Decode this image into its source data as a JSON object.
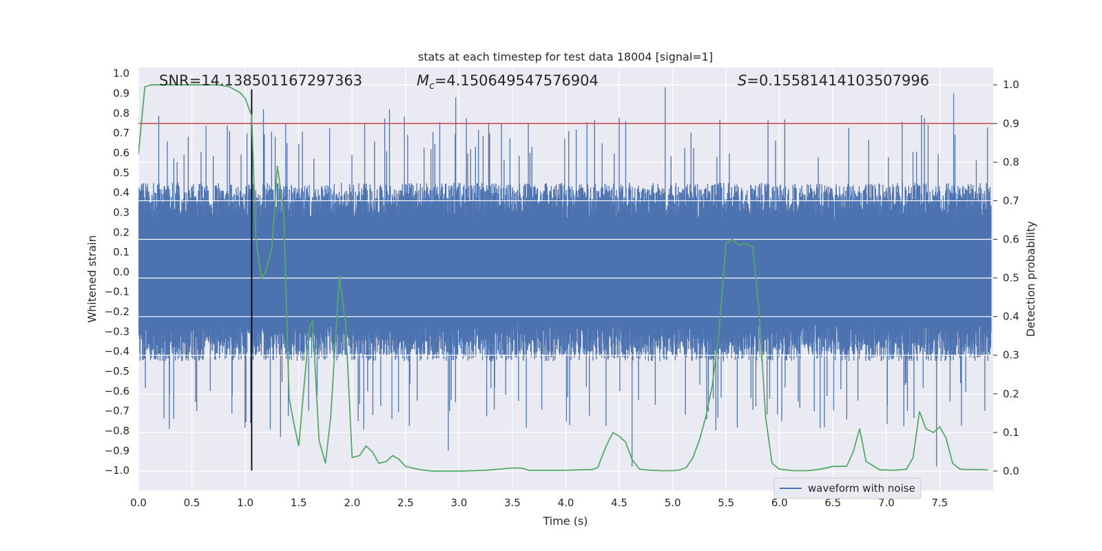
{
  "chart_data": {
    "type": "line",
    "title": "stats at each timestep for test data 18004 [signal=1]",
    "xlabel": "Time (s)",
    "ylabel_left": "Whitened strain",
    "ylabel_right": "Detection probability",
    "xlim": [
      0.0,
      8.0
    ],
    "ylim_left": [
      -1.1,
      1.03
    ],
    "ylim_right": [
      -0.05,
      1.045
    ],
    "x_ticks": [
      "0.0",
      "0.5",
      "1.0",
      "1.5",
      "2.0",
      "2.5",
      "3.0",
      "3.5",
      "4.0",
      "4.5",
      "5.0",
      "5.5",
      "6.0",
      "6.5",
      "7.0",
      "7.5"
    ],
    "y_ticks_left": [
      "1.0",
      "0.9",
      "0.8",
      "0.7",
      "0.6",
      "0.5",
      "0.4",
      "0.3",
      "0.2",
      "0.1",
      "0.0",
      "-0.1",
      "-0.2",
      "-0.3",
      "-0.4",
      "-0.5",
      "-0.6",
      "-0.7",
      "-0.8",
      "-0.9",
      "-1.0"
    ],
    "y_ticks_right": [
      "1.0",
      "0.9",
      "0.8",
      "0.7",
      "0.6",
      "0.5",
      "0.4",
      "0.3",
      "0.2",
      "0.1",
      "0.0"
    ],
    "grid": true,
    "annotations": {
      "snr": "SNR=14.138501167297363",
      "mc_symbol": "M",
      "mc_sub": "c",
      "mc_value": "=4.150649547576904",
      "s_symbol": "S",
      "s_value": "=0.15581414103507996"
    },
    "threshold": {
      "value": 0.9,
      "axis": "right",
      "color": "#c44e52"
    },
    "vline": {
      "x": 1.06,
      "ymin": -1.0,
      "ymax": 0.92,
      "color": "#000000"
    },
    "series": [
      {
        "name": "waveform with noise",
        "axis": "left",
        "color": "#4c72b0",
        "kind": "noise",
        "x_range": [
          0.0,
          7.98
        ],
        "band": [
          -0.42,
          0.42
        ],
        "approx_peaks": [
          {
            "x": 1.17,
            "y": 0.82
          },
          {
            "x": 2.35,
            "y": 0.82
          },
          {
            "x": 2.97,
            "y": 0.88
          },
          {
            "x": 4.93,
            "y": 0.93
          },
          {
            "x": 7.63,
            "y": 0.9
          },
          {
            "x": 1.33,
            "y": -0.83
          },
          {
            "x": 2.9,
            "y": -0.9
          },
          {
            "x": 4.62,
            "y": -0.98
          },
          {
            "x": 7.47,
            "y": -0.98
          },
          {
            "x": 0.33,
            "y": -0.74
          }
        ]
      },
      {
        "name": "detection probability",
        "axis": "right",
        "color": "#55a868",
        "x": [
          0.0,
          0.06,
          0.12,
          0.25,
          0.5,
          0.75,
          0.85,
          0.95,
          1.0,
          1.06,
          1.1,
          1.15,
          1.19,
          1.25,
          1.3,
          1.36,
          1.41,
          1.45,
          1.5,
          1.56,
          1.6,
          1.63,
          1.69,
          1.75,
          1.8,
          1.88,
          1.94,
          2.0,
          2.07,
          2.13,
          2.19,
          2.25,
          2.32,
          2.38,
          2.44,
          2.5,
          2.63,
          2.75,
          2.88,
          3.0,
          3.25,
          3.5,
          3.55,
          3.6,
          3.65,
          3.75,
          4.0,
          4.25,
          4.3,
          4.37,
          4.44,
          4.5,
          4.56,
          4.62,
          4.69,
          4.75,
          4.88,
          5.0,
          5.07,
          5.13,
          5.19,
          5.25,
          5.31,
          5.37,
          5.43,
          5.5,
          5.56,
          5.62,
          5.68,
          5.75,
          5.81,
          5.87,
          5.93,
          6.0,
          6.13,
          6.25,
          6.31,
          6.38,
          6.5,
          6.56,
          6.63,
          6.69,
          6.75,
          6.81,
          6.94,
          7.0,
          7.06,
          7.12,
          7.19,
          7.25,
          7.31,
          7.37,
          7.44,
          7.5,
          7.56,
          7.62,
          7.69,
          7.75,
          7.88,
          7.95
        ],
        "y": [
          0.82,
          0.995,
          1.0,
          1.0,
          1.0,
          1.0,
          0.995,
          0.98,
          0.965,
          0.92,
          0.6,
          0.5,
          0.515,
          0.58,
          0.79,
          0.67,
          0.19,
          0.13,
          0.065,
          0.25,
          0.37,
          0.39,
          0.08,
          0.02,
          0.14,
          0.505,
          0.38,
          0.035,
          0.04,
          0.065,
          0.05,
          0.02,
          0.025,
          0.04,
          0.03,
          0.012,
          0.004,
          0.0,
          0.0,
          0.0,
          0.002,
          0.008,
          0.008,
          0.007,
          0.002,
          0.002,
          0.002,
          0.004,
          0.01,
          0.06,
          0.1,
          0.09,
          0.075,
          0.03,
          0.005,
          0.003,
          0.001,
          0.001,
          0.003,
          0.01,
          0.035,
          0.08,
          0.14,
          0.22,
          0.35,
          0.59,
          0.6,
          0.585,
          0.59,
          0.58,
          0.41,
          0.14,
          0.02,
          0.005,
          0.001,
          0.001,
          0.002,
          0.005,
          0.012,
          0.012,
          0.013,
          0.05,
          0.11,
          0.025,
          0.003,
          0.003,
          0.002,
          0.003,
          0.005,
          0.035,
          0.155,
          0.11,
          0.1,
          0.115,
          0.085,
          0.02,
          0.005,
          0.004,
          0.004,
          0.003
        ]
      }
    ],
    "legend": {
      "position": "lower-right",
      "entries": [
        "waveform with noise"
      ]
    }
  }
}
